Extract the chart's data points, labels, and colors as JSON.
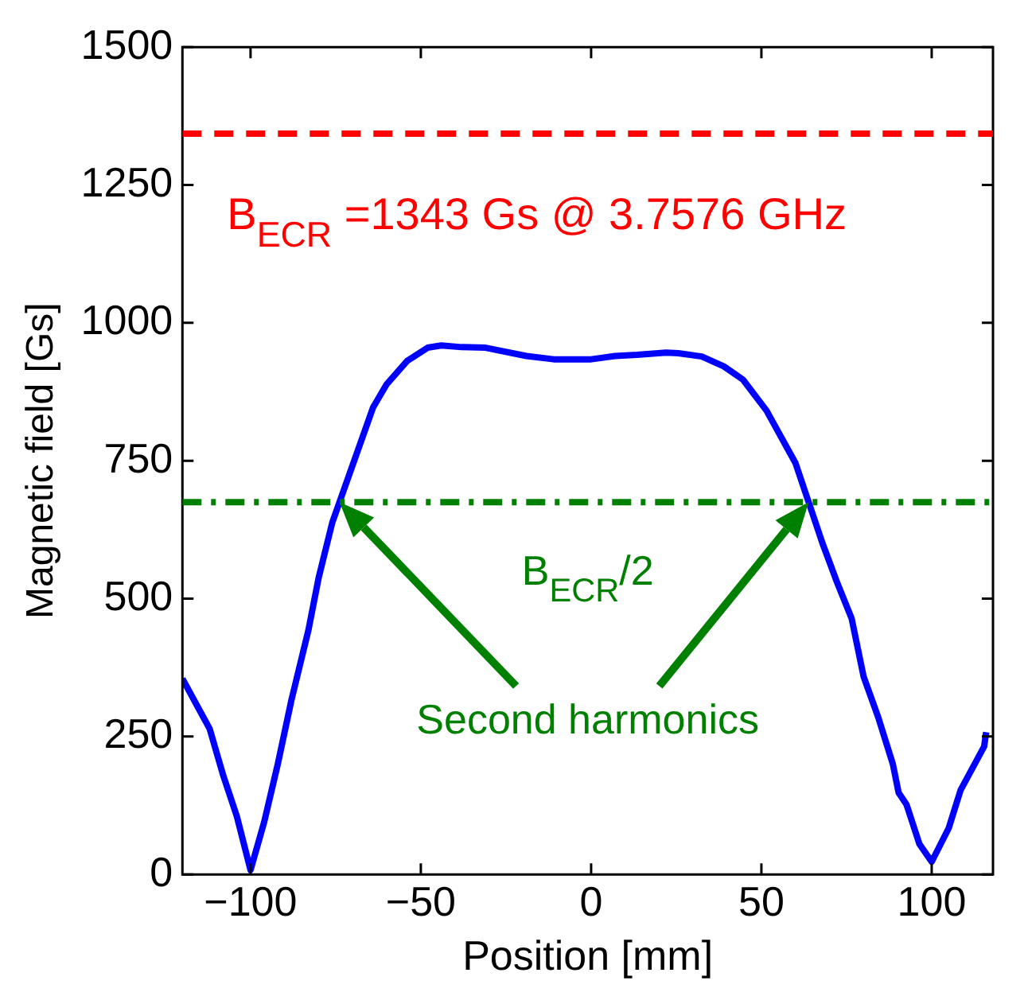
{
  "chart_data": {
    "type": "line",
    "xlabel": "Position [mm]",
    "ylabel": "Magnetic field [Gs]",
    "x": [
      -120,
      -112,
      -108,
      -104,
      -100,
      -96,
      -92,
      -88,
      -83,
      -80,
      -76,
      -64,
      -60,
      -54,
      -48,
      -44,
      -38,
      -31,
      -19,
      -11,
      0,
      7,
      13.5,
      22,
      25.6,
      32.5,
      39,
      44.6,
      51.5,
      60,
      67.9,
      72,
      76.5,
      80,
      84.3,
      88.6,
      90.3,
      92.6,
      96.4,
      100,
      105,
      108.5,
      115.4,
      116
    ],
    "series": [
      {
        "color": "#0000ff",
        "values": [
          355,
          264,
          179,
          105,
          8,
          95,
          200,
          316,
          443,
          538,
          638,
          847,
          889,
          931,
          955,
          959,
          956,
          955,
          940,
          934,
          934,
          940,
          942,
          946,
          945,
          939,
          921,
          897,
          841,
          746,
          601,
          533,
          464,
          359,
          285,
          200,
          148,
          127,
          55,
          23,
          84,
          153,
          232,
          258
        ]
      }
    ],
    "xlim": [
      -120,
      118
    ],
    "xticks": [
      -100,
      -50,
      0,
      50,
      100
    ],
    "ylim": [
      0,
      1500
    ],
    "yticks": [
      0,
      250,
      500,
      750,
      1000,
      1250,
      1500
    ],
    "grid": false,
    "legend": false,
    "marker": "none",
    "line_style": "solid",
    "ref_lines": [
      {
        "axis": "y",
        "value": 1343,
        "label": "B$_{ECR}$ =1343 Gs @ 3.7576 GHz",
        "color": "#ff0000",
        "line_style": "dashed"
      },
      {
        "axis": "y",
        "value": 675,
        "label": "B$_{ECR}$/2",
        "color": "#008000",
        "line_style": "dashdot"
      }
    ],
    "annotations": [
      "Second harmonics"
    ]
  }
}
